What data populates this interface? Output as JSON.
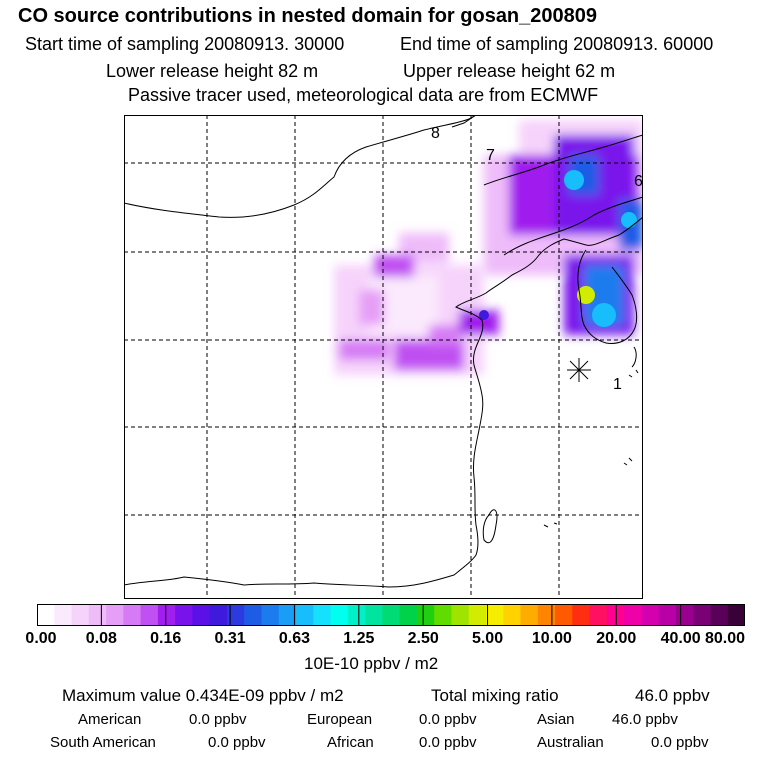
{
  "header": {
    "title": "CO  source contributions in nested domain for gosan_200809",
    "start_time": "Start time of sampling 20080913. 30000",
    "end_time": "End time of sampling 20080913. 60000",
    "lower_height": "Lower release height   82 m",
    "upper_height": "Upper release height   62 m",
    "note": "Passive tracer used, meteorological data are from ECMWF"
  },
  "map": {
    "contour_labels": [
      "8",
      "7",
      "6",
      "1"
    ],
    "receptor_marker": "asterisk"
  },
  "colorbar": {
    "ticks": [
      "0.00",
      "0.08",
      "0.16",
      "0.31",
      "0.63",
      "1.25",
      "2.50",
      "5.00",
      "10.00",
      "20.00",
      "40.00",
      "80.00"
    ],
    "units": "10E-10 ppbv / m2",
    "colors": [
      "#ffffff",
      "#fbe9fd",
      "#f6d3fb",
      "#efbcfa",
      "#e59ff7",
      "#d67bf5",
      "#c050f2",
      "#a01fee",
      "#7a12ec",
      "#5a10e6",
      "#3f19dc",
      "#2d3ae0",
      "#1f5ce6",
      "#1c7cee",
      "#1a9df6",
      "#18bdfb",
      "#15e0fe",
      "#00ffee",
      "#00f0c8",
      "#00e49f",
      "#00db76",
      "#00d24a",
      "#20d010",
      "#60dc00",
      "#9ee400",
      "#d2ec00",
      "#f5ee00",
      "#ffd200",
      "#ffac00",
      "#ff8400",
      "#ff5a00",
      "#ff2e10",
      "#ff1060",
      "#ff0090",
      "#f000a8",
      "#d400b0",
      "#b800a6",
      "#9a0090",
      "#7a0076",
      "#5a0058",
      "#3a0038"
    ]
  },
  "footer": {
    "max_label": "Maximum value  0.434E-09 ppbv / m2",
    "total_label": "Total mixing ratio",
    "total_value": "46.0 ppbv",
    "regions": [
      {
        "name": "American",
        "value": "0.0 ppbv"
      },
      {
        "name": "European",
        "value": "0.0 ppbv"
      },
      {
        "name": "Asian",
        "value": "46.0 ppbv"
      },
      {
        "name": "South American",
        "value": "0.0 ppbv"
      },
      {
        "name": "African",
        "value": "0.0 ppbv"
      },
      {
        "name": "Australian",
        "value": "0.0 ppbv"
      }
    ]
  }
}
